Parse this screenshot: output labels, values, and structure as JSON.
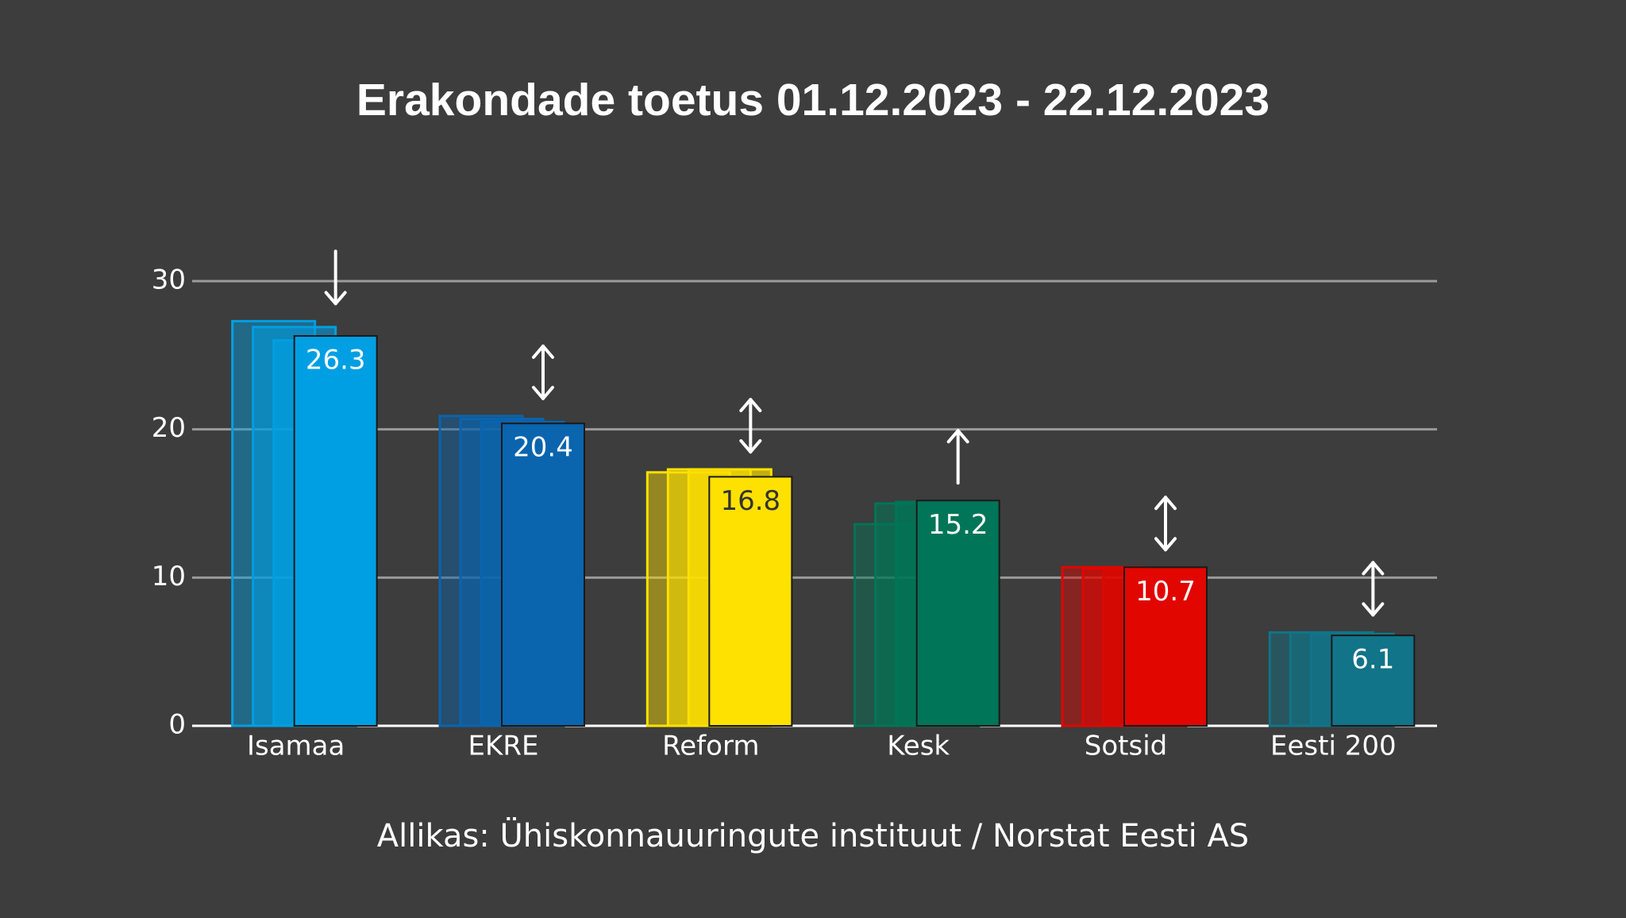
{
  "chart_data": {
    "type": "bar",
    "title": "Erakondade toetus 01.12.2023 - 22.12.2023",
    "source": "Allikas: Ühiskonnauuringute instituut / Norstat Eesti AS",
    "categories": [
      "Isamaa",
      "EKRE",
      "Reform",
      "Kesk",
      "Sotsid",
      "Eesti 200"
    ],
    "values": [
      26.3,
      20.4,
      16.8,
      15.2,
      10.7,
      6.1
    ],
    "previous_values": [
      [
        27.3,
        26.9,
        26.0
      ],
      [
        20.9,
        20.7,
        20.5
      ],
      [
        17.1,
        17.3,
        17.3
      ],
      [
        13.6,
        15.0,
        15.1
      ],
      [
        10.7,
        10.6,
        10.6
      ],
      [
        6.3,
        6.3,
        6.2
      ]
    ],
    "colors": [
      "#009fe3",
      "#0a64ae",
      "#ffe100",
      "#007557",
      "#e10600",
      "#117488"
    ],
    "trends": [
      "down",
      "both",
      "both",
      "up",
      "both",
      "both"
    ],
    "ylim": [
      0,
      30
    ],
    "yticks": [
      0,
      10,
      20,
      30
    ],
    "grid": true
  }
}
